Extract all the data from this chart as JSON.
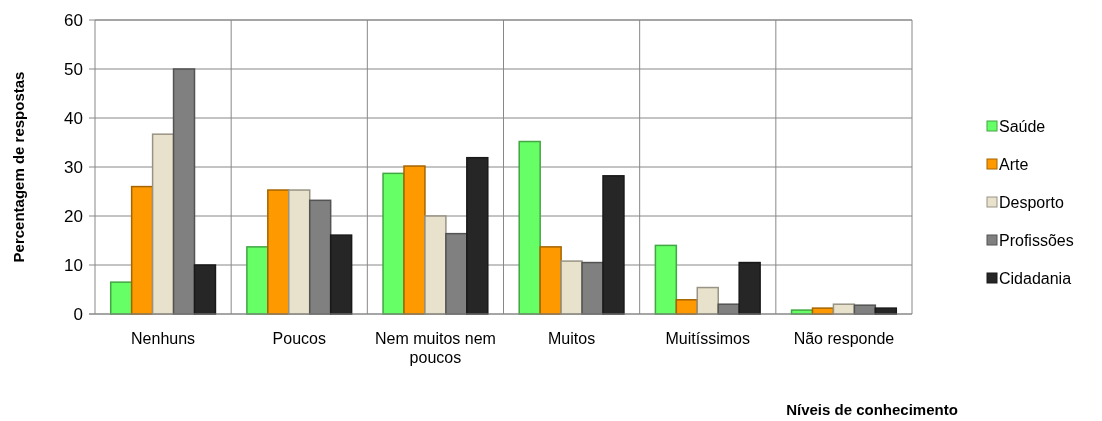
{
  "chart_data": {
    "type": "bar",
    "xlabel": "Níveis de conhecimento",
    "ylabel": "Percentagem de respostas",
    "categories": [
      "Nenhuns",
      "Poucos",
      "Nem muitos nem poucos",
      "Muitos",
      "Muitíssimos",
      "Não responde"
    ],
    "series": [
      {
        "name": "Saúde",
        "color": "#66ff66",
        "values": [
          6.5,
          13.7,
          28.7,
          35.2,
          14.0,
          0.8
        ]
      },
      {
        "name": "Arte",
        "color": "#ff9900",
        "values": [
          26,
          25.3,
          30.2,
          13.7,
          2.9,
          1.2
        ]
      },
      {
        "name": "Desporto",
        "color": "#e8e2cc",
        "values": [
          36.7,
          25.3,
          20,
          10.8,
          5.4,
          2.0
        ]
      },
      {
        "name": "Profissões",
        "color": "#808080",
        "values": [
          50,
          23.2,
          16.4,
          10.5,
          2.0,
          1.8
        ]
      },
      {
        "name": "Cidadania",
        "color": "#262626",
        "values": [
          10,
          16.1,
          31.9,
          28.2,
          10.5,
          1.2
        ]
      }
    ],
    "ylim": [
      0,
      60
    ],
    "yticks": [
      0,
      10,
      20,
      30,
      40,
      50,
      60
    ],
    "grid": true,
    "legend": "right"
  }
}
